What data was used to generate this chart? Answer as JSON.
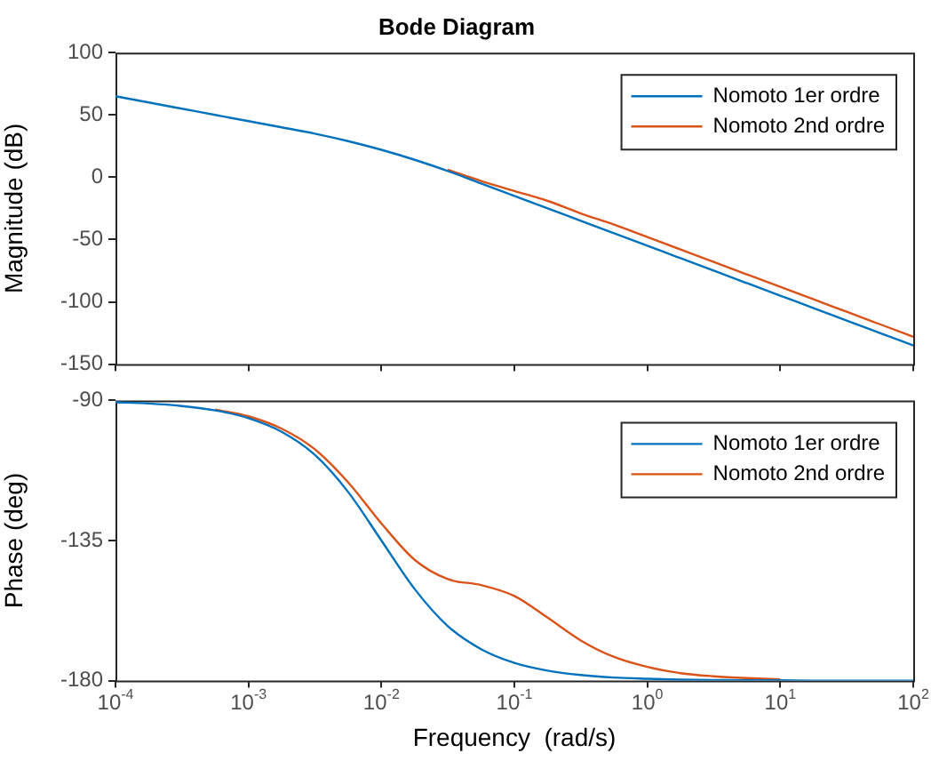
{
  "chart_data": [
    {
      "type": "line",
      "title": "Bode Diagram",
      "ylabel": "Magnitude (dB)",
      "log": "x",
      "x": [
        0.0001,
        0.000178,
        0.000316,
        0.000562,
        0.001,
        0.00178,
        0.00316,
        0.00562,
        0.01,
        0.0178,
        0.0316,
        0.0562,
        0.1,
        0.178,
        0.316,
        0.562,
        1,
        1.78,
        3.16,
        5.62,
        10,
        17.8,
        31.6,
        56.2,
        100
      ],
      "series": [
        {
          "name": "Nomoto 1er ordre",
          "color": "#0072bd",
          "values": [
            65,
            60,
            55,
            50,
            45,
            40,
            35,
            29,
            22,
            14,
            5,
            -5,
            -15,
            -25,
            -35,
            -45,
            -55,
            -65,
            -75,
            -85,
            -95,
            -105,
            -115,
            -125,
            -135
          ]
        },
        {
          "name": "Nomoto 2nd ordre",
          "color": "#d95319",
          "values": [
            null,
            null,
            null,
            null,
            null,
            null,
            null,
            null,
            null,
            null,
            6,
            -3,
            -11,
            -19,
            -29,
            -38,
            -48,
            -58,
            -68,
            -78,
            -88,
            -98,
            -108,
            -118,
            -128
          ]
        }
      ],
      "xlim": [
        0.0001,
        100
      ],
      "xticks": [
        {
          "value": 0.0001,
          "label": null
        },
        {
          "value": 0.001,
          "label": null
        },
        {
          "value": 0.01,
          "label": null
        },
        {
          "value": 0.1,
          "label": null
        },
        {
          "value": 1,
          "label": null
        },
        {
          "value": 10,
          "label": null
        },
        {
          "value": 100,
          "label": null
        }
      ],
      "ylim": [
        -150,
        100
      ],
      "yticks": [
        -150,
        -100,
        -50,
        0,
        50,
        100
      ],
      "tick_labels": "y",
      "legend": "top right",
      "grid": false,
      "marker": "none",
      "line_style": "solid"
    },
    {
      "type": "line",
      "xlabel": "Frequency  (rad/s)",
      "ylabel": "Phase (deg)",
      "log": "x",
      "x": [
        0.0001,
        0.000178,
        0.000316,
        0.000562,
        0.001,
        0.00178,
        0.00316,
        0.00562,
        0.01,
        0.0178,
        0.0316,
        0.0562,
        0.1,
        0.178,
        0.316,
        0.562,
        1,
        1.78,
        3.16,
        5.62,
        10,
        17.8,
        31.6,
        56.2,
        100
      ],
      "series": [
        {
          "name": "Nomoto 1er ordre",
          "color": "#0072bd",
          "values": [
            -90.6,
            -91.0,
            -91.8,
            -93.2,
            -95.7,
            -100.1,
            -107.5,
            -119.4,
            -135.0,
            -150.6,
            -162.5,
            -169.9,
            -174.3,
            -176.8,
            -178.2,
            -179.0,
            -179.4,
            -179.7,
            -179.8,
            -179.9,
            -179.9,
            -180.0,
            -180.0,
            -180.0,
            -180.0
          ]
        },
        {
          "name": "Nomoto 2nd ordre",
          "color": "#d95319",
          "values": [
            null,
            null,
            null,
            -92.9,
            -95.1,
            -99.1,
            -105.7,
            -116.3,
            -129.5,
            -141.2,
            -147.4,
            -149.3,
            -152.8,
            -159.8,
            -167.1,
            -172.4,
            -175.6,
            -177.6,
            -178.6,
            -179.2,
            -179.6,
            null,
            null,
            null,
            null
          ]
        }
      ],
      "xlim": [
        0.0001,
        100
      ],
      "xticks": [
        {
          "value": 0.0001,
          "label": "10$^{-4}$"
        },
        {
          "value": 0.001,
          "label": "10$^{-3}$"
        },
        {
          "value": 0.01,
          "label": "10$^{-2}$"
        },
        {
          "value": 0.1,
          "label": "10$^{-1}$"
        },
        {
          "value": 1,
          "label": "10$^{0}$"
        },
        {
          "value": 10,
          "label": "10$^{1}$"
        },
        {
          "value": 100,
          "label": "10$^{2}$"
        }
      ],
      "ylim": [
        -180,
        -90
      ],
      "yticks": [
        -180,
        -135,
        -90
      ],
      "legend": "top right",
      "grid": false,
      "marker": "none",
      "line_style": "solid"
    }
  ]
}
